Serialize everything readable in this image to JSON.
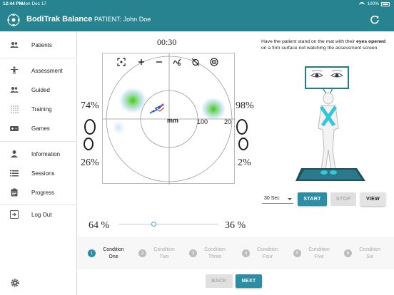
{
  "status_bar": {
    "time": "12:44 PM",
    "date": "Mon Dec 17",
    "battery": "100%"
  },
  "header": {
    "app_title": "BodiTrak Balance",
    "patient": "PATIENT: John Doe"
  },
  "sidebar": {
    "items": [
      {
        "label": "Patients",
        "icon": "people-icon"
      },
      {
        "label": "Assessment",
        "icon": "person-icon"
      },
      {
        "label": "Guided",
        "icon": "group-icon"
      },
      {
        "label": "Training",
        "icon": "grid-icon"
      },
      {
        "label": "Games",
        "icon": "gamepad-icon"
      },
      {
        "label": "Information",
        "icon": "person-info-icon"
      },
      {
        "label": "Sessions",
        "icon": "list-icon"
      },
      {
        "label": "Progress",
        "icon": "clipboard-icon"
      },
      {
        "label": "Log Out",
        "icon": "logout-icon"
      }
    ]
  },
  "assessment": {
    "timer": "00:30",
    "top_left_pct": "74%",
    "top_right_pct": "98%",
    "bottom_left_pct": "26%",
    "bottom_right_pct": "2%",
    "plot_unit": "mm",
    "ring_labels": [
      "100",
      "20"
    ],
    "slider_left_pct": "64 %",
    "slider_right_pct": "36 %",
    "slider_value": 0.35,
    "colors": {
      "accent": "#2b8ea5",
      "header": "#27838f",
      "pressure": "#4cc13c"
    }
  },
  "instructions": {
    "part1": "Have the patient stand on the mat with their ",
    "bold": "eyes opened",
    "part2": " on a firm surface not watching the assessment screen"
  },
  "controls": {
    "duration": "30 Sec",
    "start_label": "START",
    "stop_label": "STOP",
    "view_label": "VIEW"
  },
  "conditions": [
    {
      "num": "1",
      "label1": "Condition",
      "label2": "One",
      "active": true
    },
    {
      "num": "2",
      "label1": "Condition",
      "label2": "Two",
      "active": false
    },
    {
      "num": "3",
      "label1": "Condition",
      "label2": "Three",
      "active": false
    },
    {
      "num": "4",
      "label1": "Condition",
      "label2": "Four",
      "active": false
    },
    {
      "num": "5",
      "label1": "Condition",
      "label2": "Five",
      "active": false
    },
    {
      "num": "6",
      "label1": "Condition",
      "label2": "Six",
      "active": false
    }
  ],
  "footer": {
    "back_label": "BACK",
    "next_label": "NEXT"
  }
}
